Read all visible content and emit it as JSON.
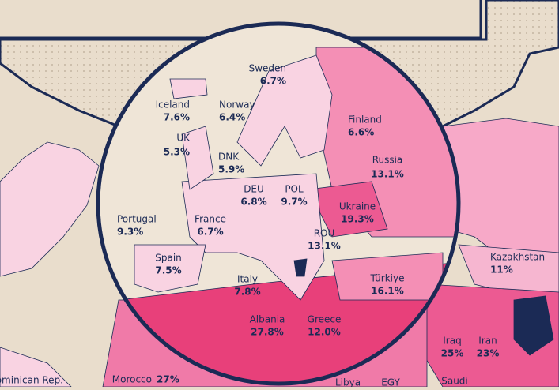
{
  "regions": [
    {
      "name": "Sweden",
      "value": "6.7%"
    },
    {
      "name": "Iceland",
      "value": "7.6%"
    },
    {
      "name": "Norway",
      "value": "6.4%"
    },
    {
      "name": "Finland",
      "value": "6.6%"
    },
    {
      "name": "UK",
      "value": "5.3%"
    },
    {
      "name": "DNK",
      "value": "5.9%"
    },
    {
      "name": "Russia",
      "value": "13.1%"
    },
    {
      "name": "DEU",
      "value": "6.8%"
    },
    {
      "name": "POL",
      "value": "9.7%"
    },
    {
      "name": "Ukraine",
      "value": "19.3%"
    },
    {
      "name": "Portugal",
      "value": "9.3%"
    },
    {
      "name": "France",
      "value": "6.7%"
    },
    {
      "name": "ROU",
      "value": "13.1%"
    },
    {
      "name": "Spain",
      "value": "7.5%"
    },
    {
      "name": "Kazakhstan",
      "value": "11%"
    },
    {
      "name": "Italy",
      "value": "7.8%"
    },
    {
      "name": "Türkiye",
      "value": "16.1%"
    },
    {
      "name": "Albania",
      "value": "27.8%"
    },
    {
      "name": "Greece",
      "value": "12.0%"
    },
    {
      "name": "Iraq",
      "value": "25%"
    },
    {
      "name": "Iran",
      "value": "23%"
    },
    {
      "name": "Morocco",
      "value": "27%"
    },
    {
      "name": "Dominican Rep."
    },
    {
      "name": "Libya"
    },
    {
      "name": "EGY"
    },
    {
      "name": "Saudi"
    }
  ]
}
